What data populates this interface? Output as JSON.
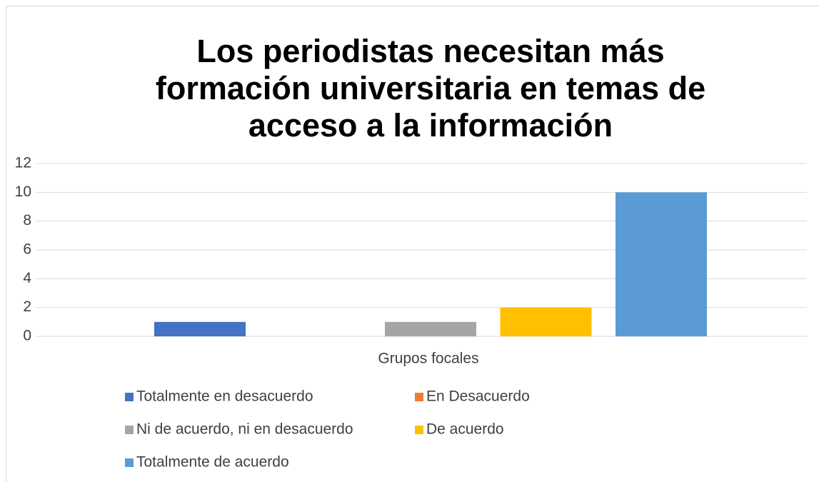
{
  "chart_data": {
    "type": "bar",
    "title": "Los periodistas necesitan más formación universitaria en temas de acceso a la información",
    "categories": [
      "Grupos focales"
    ],
    "series": [
      {
        "name": "Totalmente en desacuerdo",
        "color": "#4472c4",
        "values": [
          1
        ]
      },
      {
        "name": "En Desacuerdo",
        "color": "#ed7d31",
        "values": [
          0
        ]
      },
      {
        "name": "Ni de acuerdo, ni en desacuerdo",
        "color": "#a5a5a5",
        "values": [
          1
        ]
      },
      {
        "name": "De acuerdo",
        "color": "#ffc000",
        "values": [
          2
        ]
      },
      {
        "name": "Totalmente de acuerdo",
        "color": "#5b9bd5",
        "values": [
          10
        ]
      }
    ],
    "ylim": [
      0,
      12
    ],
    "yticks": [
      0,
      2,
      4,
      6,
      8,
      10,
      12
    ],
    "grid": true,
    "legend": "bottom"
  }
}
